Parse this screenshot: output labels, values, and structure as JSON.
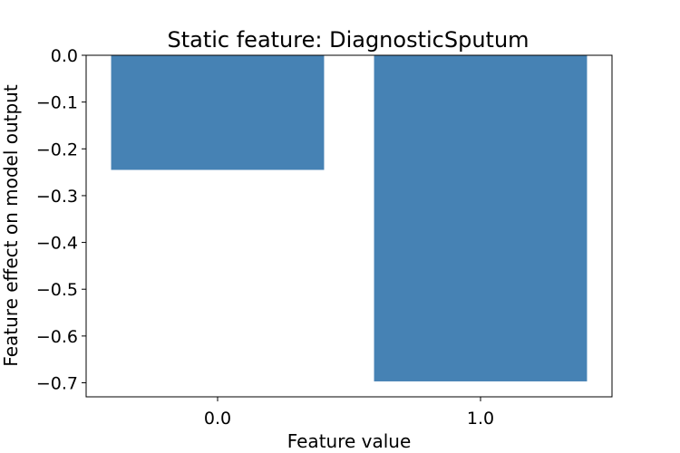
{
  "chart_data": {
    "type": "bar",
    "title": "Static feature: DiagnosticSputum",
    "xlabel": "Feature value",
    "ylabel": "Feature effect on model output",
    "categories": [
      "0.0",
      "1.0"
    ],
    "values": [
      -0.245,
      -0.697
    ],
    "ylim": [
      -0.73,
      0.0
    ],
    "yticks": [
      "0.0",
      "−0.1",
      "−0.2",
      "−0.3",
      "−0.4",
      "−0.5",
      "−0.6",
      "−0.7"
    ],
    "ytick_values": [
      0.0,
      -0.1,
      -0.2,
      -0.3,
      -0.4,
      -0.5,
      -0.6,
      -0.7
    ],
    "bar_color": "#4682b4",
    "grid": false,
    "legend": "none"
  }
}
